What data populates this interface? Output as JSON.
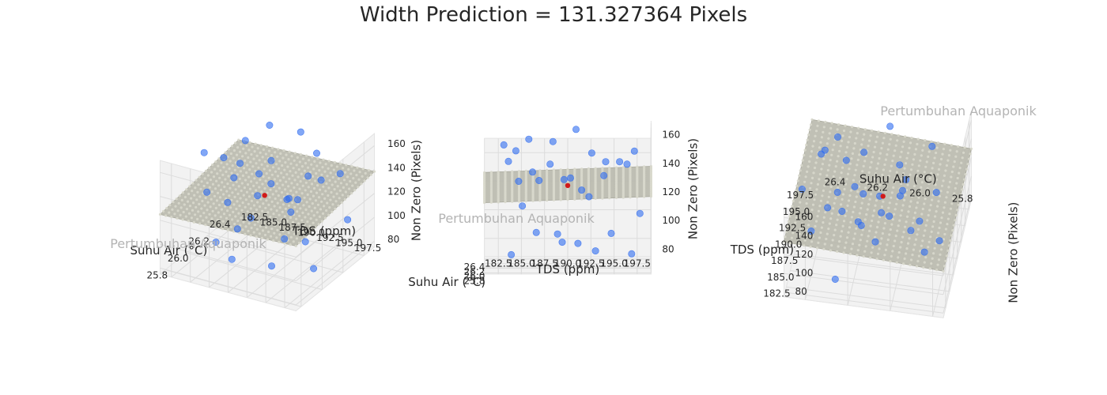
{
  "title": "Width Prediction = 131.327364 Pixels",
  "watermark": "Pertumbuhan Aquaponik",
  "colors": {
    "observed": "#2f6cf0",
    "predicted": "#d11a1a",
    "plane": "#b9b9ad",
    "plane_dots": "#d8d8cc",
    "pane": "#f2f2f2",
    "grid": "#dcdcdc"
  },
  "chart_data": {
    "type": "scatter",
    "subtype": "3d-scatter-with-regression-plane",
    "title": "Width Prediction = 131.327364 Pixels",
    "xlabel": "Suhu Air (°C)",
    "ylabel": "TDS (ppm)",
    "zlabel": "Non Zero (Pixels)",
    "xlim": [
      25.75,
      26.5
    ],
    "ylim": [
      181,
      199
    ],
    "zlim": [
      75,
      170
    ],
    "xticks": [
      "25.8",
      "26.0",
      "26.2",
      "26.4"
    ],
    "yticks": [
      "182.5",
      "185.0",
      "187.5",
      "190.0",
      "192.5",
      "195.0",
      "197.5"
    ],
    "zticks": [
      "80",
      "100",
      "120",
      "140",
      "160"
    ],
    "grid": true,
    "panels": 3,
    "plane": {
      "intercept": 131.3,
      "slope_x": 12,
      "slope_y": 1.2,
      "x_center": 26.1,
      "y_center": 190
    },
    "prediction": {
      "x": 26.1,
      "y": 190,
      "z": 131.327364
    },
    "series": [
      {
        "points": [
          [
            26.32,
            184.4,
            152
          ],
          [
            26.17,
            183.6,
            147
          ],
          [
            26.41,
            192.6,
            149
          ],
          [
            26.3,
            188.1,
            143
          ],
          [
            26.08,
            186.2,
            141
          ],
          [
            26.22,
            194.1,
            146
          ],
          [
            26.01,
            190.3,
            138
          ],
          [
            25.93,
            184.7,
            137
          ],
          [
            26.36,
            196.4,
            142
          ],
          [
            26.05,
            193.9,
            139
          ],
          [
            26.19,
            189.6,
            134
          ],
          [
            25.86,
            191.5,
            132
          ],
          [
            26.27,
            186.9,
            132
          ],
          [
            26.12,
            197.2,
            155
          ],
          [
            26.45,
            185.8,
            158
          ],
          [
            25.91,
            195.6,
            151
          ],
          [
            26.02,
            183.1,
            161
          ],
          [
            26.38,
            190.9,
            166
          ],
          [
            25.98,
            188.4,
            164
          ],
          [
            26.25,
            192.3,
            121
          ],
          [
            26.1,
            185.1,
            117
          ],
          [
            26.33,
            197.8,
            108
          ],
          [
            25.88,
            186.6,
            102
          ],
          [
            26.15,
            194.7,
            97
          ],
          [
            26.43,
            188.9,
            92
          ],
          [
            25.95,
            193.0,
            88
          ],
          [
            26.07,
            196.9,
            84
          ],
          [
            26.28,
            183.9,
            80
          ],
          [
            25.83,
            189.4,
            96
          ],
          [
            26.21,
            191.1,
            89
          ]
        ]
      }
    ]
  }
}
